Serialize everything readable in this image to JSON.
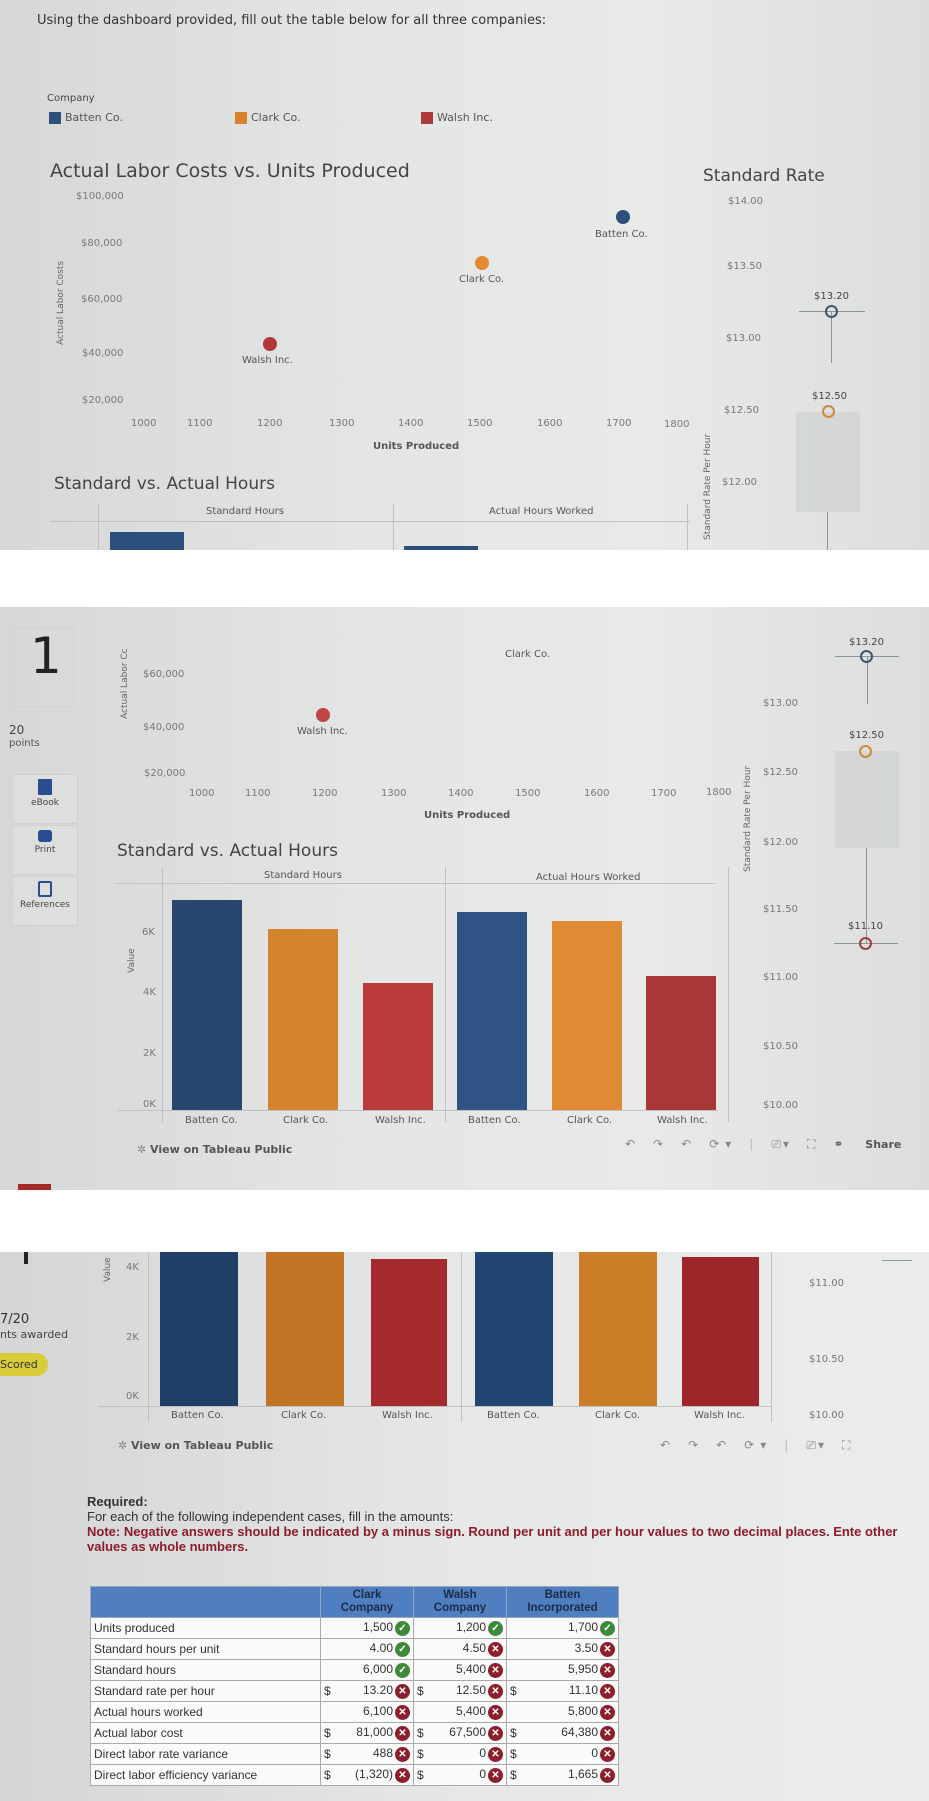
{
  "instruction": "Using the dashboard provided, fill out the table below for all three companies:",
  "legend": {
    "title": "Company",
    "items": [
      {
        "label": "Batten Co.",
        "color": "#2c4f7c"
      },
      {
        "label": "Clark Co.",
        "color": "#d9822b"
      },
      {
        "label": "Walsh Inc.",
        "color": "#b03a3a"
      }
    ]
  },
  "scatter": {
    "title": "Actual Labor Costs vs. Units Produced",
    "y_axis_label": "Actual Labor Costs",
    "y_axis_label_short": "Actual Labor Cc",
    "x_axis_label": "Units Produced",
    "y_ticks": [
      "$100,000",
      "$80,000",
      "$60,000",
      "$40,000",
      "$20,000"
    ],
    "x_ticks": [
      "1000",
      "1100",
      "1200",
      "1300",
      "1400",
      "1500",
      "1600",
      "1700",
      "1800"
    ],
    "points": [
      {
        "label": "Batten Co."
      },
      {
        "label": "Clark Co."
      },
      {
        "label": "Walsh Inc."
      }
    ]
  },
  "rate": {
    "title": "Standard Rate",
    "y_axis_label": "Standard Rate Per Hour",
    "ticks_top": [
      "$14.00",
      "$13.50",
      "$13.00",
      "$12.50",
      "$12.00"
    ],
    "ticks_mid": [
      "$13.00",
      "$12.50",
      "$12.00",
      "$11.50",
      "$11.00",
      "$10.50",
      "$10.00"
    ],
    "ticks_bottom": [
      "$11.00",
      "$10.50",
      "$10.00"
    ],
    "labels": {
      "batten": "$13.20",
      "clark": "$12.50",
      "walsh": "$11.10"
    }
  },
  "hours": {
    "title": "Standard vs. Actual Hours",
    "panel_left": "Standard Hours",
    "panel_right": "Actual Hours Worked",
    "y_axis_label": "Value",
    "y_ticks": [
      "6K",
      "4K",
      "2K",
      "0K"
    ],
    "categories": [
      "Batten Co.",
      "Clark Co.",
      "Walsh Inc."
    ]
  },
  "tableau_link": "View on Tableau Public",
  "toolbar": {
    "undo": "↶",
    "redo": "↷",
    "revert": "↶",
    "refresh": "⟳",
    "dropdown": "▾",
    "device": "⎚",
    "fullscreen": "⛶",
    "share_icon": "⚭",
    "share": "Share"
  },
  "sidebar": {
    "question_number": "1",
    "points": "20",
    "points_label": "points",
    "ebook": "eBook",
    "print": "Print",
    "references": "References",
    "score": "7/20",
    "score_label": "nts awarded",
    "scored_badge": "Scored"
  },
  "required": {
    "heading": "Required:",
    "text": "For each of the following independent cases, fill in the amounts:",
    "note": "Note: Negative answers should be indicated by a minus sign. Round per unit and per hour values to two decimal places. Ente other values as whole numbers."
  },
  "table": {
    "headers": [
      "",
      "Clark Company",
      "Walsh Company",
      "Batten Incorporated"
    ],
    "rows": [
      {
        "label": "Units produced",
        "dollar": false,
        "cells": [
          {
            "v": "1,500",
            "ok": true
          },
          {
            "v": "1,200",
            "ok": true
          },
          {
            "v": "1,700",
            "ok": true
          }
        ]
      },
      {
        "label": "Standard hours per unit",
        "dollar": false,
        "cells": [
          {
            "v": "4.00",
            "ok": true
          },
          {
            "v": "4.50",
            "ok": false
          },
          {
            "v": "3.50",
            "ok": false
          }
        ]
      },
      {
        "label": "Standard hours",
        "dollar": false,
        "cells": [
          {
            "v": "6,000",
            "ok": true
          },
          {
            "v": "5,400",
            "ok": false
          },
          {
            "v": "5,950",
            "ok": false
          }
        ]
      },
      {
        "label": "Standard rate per hour",
        "dollar": true,
        "cells": [
          {
            "v": "13.20",
            "ok": false
          },
          {
            "v": "12.50",
            "ok": false
          },
          {
            "v": "11.10",
            "ok": false
          }
        ]
      },
      {
        "label": "Actual hours worked",
        "dollar": false,
        "cells": [
          {
            "v": "6,100",
            "ok": false
          },
          {
            "v": "5,400",
            "ok": false
          },
          {
            "v": "5,800",
            "ok": false
          }
        ]
      },
      {
        "label": "Actual labor cost",
        "dollar": true,
        "cells": [
          {
            "v": "81,000",
            "ok": false
          },
          {
            "v": "67,500",
            "ok": false
          },
          {
            "v": "64,380",
            "ok": false
          }
        ]
      },
      {
        "label": "Direct labor rate variance",
        "dollar": true,
        "cells": [
          {
            "v": "488",
            "ok": false
          },
          {
            "v": "0",
            "ok": false
          },
          {
            "v": "0",
            "ok": false
          }
        ]
      },
      {
        "label": "Direct labor efficiency variance",
        "dollar": true,
        "cells": [
          {
            "v": "(1,320)",
            "ok": false
          },
          {
            "v": "0",
            "ok": false
          },
          {
            "v": "1,665",
            "ok": false
          }
        ]
      }
    ],
    "dollar_sign": "$",
    "ok_glyph": "✓",
    "bad_glyph": "✕"
  },
  "chart_data": [
    {
      "type": "scatter",
      "title": "Actual Labor Costs vs. Units Produced",
      "xlabel": "Units Produced",
      "ylabel": "Actual Labor Costs",
      "xlim": [
        1000,
        1800
      ],
      "ylim": [
        20000,
        100000
      ],
      "series": [
        {
          "name": "Batten Co.",
          "x": [
            1700
          ],
          "y": [
            91000
          ]
        },
        {
          "name": "Clark Co.",
          "x": [
            1500
          ],
          "y": [
            72000
          ]
        },
        {
          "name": "Walsh Inc.",
          "x": [
            1200
          ],
          "y": [
            42000
          ]
        }
      ]
    },
    {
      "type": "bar",
      "title": "Standard vs. Actual Hours",
      "categories": [
        "Batten Co.",
        "Clark Co.",
        "Walsh Inc."
      ],
      "ylabel": "Value",
      "ylim": [
        0,
        7000
      ],
      "series": [
        {
          "name": "Standard Hours",
          "values": [
            7000,
            6000,
            4200
          ]
        },
        {
          "name": "Actual Hours Worked",
          "values": [
            6600,
            6300,
            4450
          ]
        }
      ]
    },
    {
      "type": "scatter",
      "title": "Standard Rate",
      "ylabel": "Standard Rate Per Hour",
      "ylim": [
        10.0,
        14.0
      ],
      "series": [
        {
          "name": "Batten Co.",
          "y": [
            13.2
          ]
        },
        {
          "name": "Clark Co.",
          "y": [
            12.5
          ]
        },
        {
          "name": "Walsh Inc.",
          "y": [
            11.1
          ]
        }
      ]
    }
  ]
}
